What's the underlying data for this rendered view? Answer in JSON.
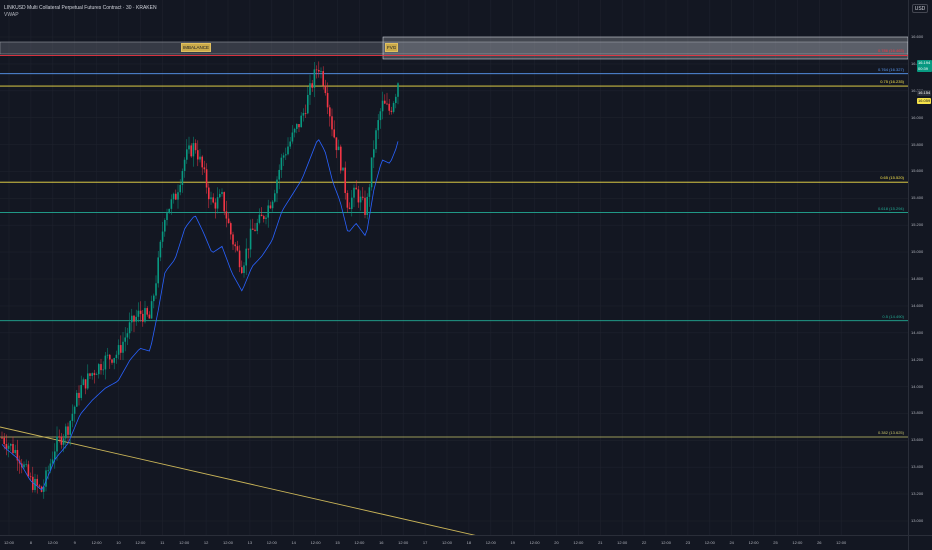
{
  "header": {
    "symbol": "LINKUSD Multi Collateral Perpetual Futures Contract · 30 · KRAKEN",
    "indicator": "VWAP"
  },
  "currency": "USD",
  "price_axis": [
    "16.600",
    "16.400",
    "16.200",
    "16.000",
    "15.800",
    "15.600",
    "15.400",
    "15.200",
    "15.000",
    "14.800",
    "14.600",
    "14.400",
    "14.200",
    "14.000",
    "13.800",
    "13.600",
    "13.400",
    "13.200",
    "13.000"
  ],
  "time_axis": [
    "12:00",
    "8",
    "12:00",
    "9",
    "12:00",
    "10",
    "12:00",
    "11",
    "12:00",
    "12",
    "12:00",
    "13",
    "12:00",
    "14",
    "12:00",
    "15",
    "12:00",
    "16",
    "12:00",
    "17",
    "12:00",
    "18",
    "12:00",
    "19",
    "12:00",
    "20",
    "12:00",
    "21",
    "12:00",
    "22",
    "12:00",
    "23",
    "12:00",
    "24",
    "12:00",
    "25",
    "12:00",
    "26",
    "12:00"
  ],
  "fib_levels": [
    {
      "label": "0.786 (16.463)",
      "price": 16.463,
      "color": "#f23645"
    },
    {
      "label": "0.764 (16.327)",
      "price": 16.327,
      "color": "#5b9cf6"
    },
    {
      "label": "0.75 (16.235)",
      "price": 16.235,
      "color": "#f7e34a"
    },
    {
      "label": "0.65 (15.520)",
      "price": 15.52,
      "color": "#f7e34a"
    },
    {
      "label": "0.618 (15.294)",
      "price": 15.294,
      "color": "#22ab94"
    },
    {
      "label": "0.5 (14.490)",
      "price": 14.49,
      "color": "#22ab94"
    },
    {
      "label": "0.382 (13.625)",
      "price": 13.625,
      "color": "#c9c46b"
    }
  ],
  "zones": {
    "imbalance": "IMBALANCE",
    "fvg": "FVG"
  },
  "price_badges": [
    {
      "text": "16.194",
      "sub": "00:39",
      "bg": "#089981",
      "color": "#ffffff"
    },
    {
      "text": "16.154",
      "bg": "#2a2e39",
      "color": "#ffffff"
    },
    {
      "text": "16.059",
      "bg": "#f7e34a",
      "color": "#131722"
    }
  ],
  "colors": {
    "up": "#089981",
    "down": "#f23645",
    "vwap": "#2962ff",
    "trendline": "#c9b458"
  }
}
